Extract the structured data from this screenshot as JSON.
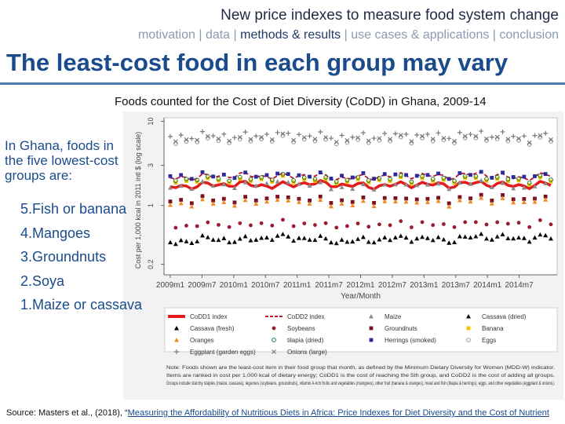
{
  "header": {
    "title": "New price indexes to measure food system change",
    "nav": [
      {
        "label": "motivation",
        "current": false
      },
      {
        "label": "data",
        "current": false
      },
      {
        "label": "methods & results",
        "current": true
      },
      {
        "label": "use cases & applications",
        "current": false
      },
      {
        "label": "conclusion",
        "current": false
      }
    ]
  },
  "slide_title": "The least-cost food in each group may vary",
  "figure_caption": "Foods counted for the Cost of Diet Diversity (CoDD) in Ghana, 2009-14",
  "intro_text": "In Ghana, foods in the five lowest-cost groups are:",
  "ranked_foods": [
    "5.Fish or banana",
    "4.Mangoes",
    "3.Groundnuts",
    "2.Soya",
    "1.Maize or cassava"
  ],
  "source": {
    "prefix": "Source: Masters et al., (2018), “",
    "link_text": "Measuring the Affordability of Nutritious Diets in Africa: Price Indexes for Diet Diversity and the Cost of Nutrient"
  },
  "chart_data": {
    "type": "scatter",
    "ylabel": "Cost per 1,000 kcal in 2011 intl $ (log scale)",
    "xlabel": "Year/Month",
    "log_scale_y": true,
    "ylim": [
      0.15,
      11
    ],
    "y_ticks": [
      0.2,
      1,
      3,
      10
    ],
    "x_ticks": [
      "2009m1",
      "2009m7",
      "2010m1",
      "2010m7",
      "2011m1",
      "2011m7",
      "2012m1",
      "2012m7",
      "2013m1",
      "2013m7",
      "2014m1",
      "2014m7"
    ],
    "x_range": [
      "2009m1",
      "2014m12"
    ],
    "series": [
      {
        "name": "CoDD1 index",
        "style": "thick-line",
        "color": "#e41a1c",
        "values": [
          1.65,
          1.75,
          1.8,
          1.7,
          1.85,
          1.75,
          1.7,
          1.8,
          1.75,
          1.85,
          1.7,
          1.8
        ]
      },
      {
        "name": "CoDD2 index",
        "style": "dashed-line",
        "color": "#c0142a",
        "values": [
          2.1,
          2.2,
          2.3,
          2.2,
          2.3,
          2.1,
          2.2,
          2.3,
          2.2,
          2.4,
          2.1,
          2.3
        ]
      },
      {
        "name": "Maize",
        "marker": "triangle",
        "color": "#8c8c8c",
        "values": [
          1.6,
          1.8,
          1.7,
          1.9,
          1.8,
          1.6,
          1.7,
          1.8,
          1.7,
          1.9,
          1.6,
          1.8
        ]
      },
      {
        "name": "Cassava (dried)",
        "marker": "triangle",
        "color": "#111111",
        "values": [
          0.35,
          0.4,
          0.38,
          0.42,
          0.4,
          0.37,
          0.39,
          0.41,
          0.38,
          0.43,
          0.4,
          0.42
        ]
      },
      {
        "name": "Cassava (fresh)",
        "marker": "triangle",
        "color": "#000000",
        "values": [
          0.36,
          0.41,
          0.39,
          0.43,
          0.41,
          0.38,
          0.4,
          0.42,
          0.39,
          0.44,
          0.41,
          0.43
        ]
      },
      {
        "name": "Soybeans",
        "marker": "circle",
        "color": "#9b1b30",
        "values": [
          0.55,
          0.6,
          0.58,
          0.62,
          0.6,
          0.57,
          0.59,
          0.61,
          0.58,
          0.63,
          0.6,
          0.62
        ]
      },
      {
        "name": "Groundnuts",
        "marker": "square",
        "color": "#7a1020",
        "values": [
          1.1,
          1.2,
          1.15,
          1.25,
          1.2,
          1.12,
          1.18,
          1.22,
          1.15,
          1.28,
          1.2,
          1.24
        ]
      },
      {
        "name": "Banana",
        "marker": "square",
        "color": "#f5c400",
        "values": [
          1.9,
          2.0,
          1.95,
          2.05,
          2.0,
          1.9,
          1.98,
          2.02,
          1.95,
          2.1,
          1.9,
          2.0
        ]
      },
      {
        "name": "Oranges",
        "marker": "triangle",
        "color": "#f08a24",
        "values": [
          1.0,
          1.1,
          1.05,
          1.15,
          1.1,
          1.02,
          1.08,
          1.12,
          1.05,
          1.18,
          1.1,
          1.14
        ]
      },
      {
        "name": "tilapia (dried)",
        "marker": "circle-open",
        "color": "#1e7a3a",
        "values": [
          2.0,
          2.1,
          2.05,
          2.15,
          2.1,
          2.0,
          2.08,
          2.12,
          2.05,
          2.2,
          2.0,
          2.1
        ]
      },
      {
        "name": "Herrings (smoked)",
        "marker": "square",
        "color": "#2b2b9e",
        "values": [
          2.2,
          2.3,
          2.25,
          2.35,
          2.3,
          2.2,
          2.28,
          2.32,
          2.25,
          2.4,
          2.2,
          2.3
        ]
      },
      {
        "name": "Eggs",
        "marker": "circle-open",
        "color": "#999999",
        "values": [
          5.5,
          6.0,
          5.8,
          6.2,
          6.0,
          5.6,
          5.9,
          6.1,
          5.8,
          6.3,
          5.7,
          6.0
        ]
      },
      {
        "name": "Eggplant (garden eggs)",
        "marker": "plus",
        "color": "#777777",
        "values": [
          6.5,
          7.0,
          6.8,
          7.2,
          7.0,
          6.6,
          6.9,
          7.1,
          6.8,
          7.3,
          6.7,
          7.0
        ]
      },
      {
        "name": "Onions (large)",
        "marker": "cross",
        "color": "#777777",
        "values": [
          5.8,
          6.3,
          6.1,
          6.5,
          6.3,
          5.9,
          6.2,
          6.4,
          6.1,
          6.6,
          6.0,
          6.3
        ]
      }
    ],
    "note_lines": [
      "Note: Foods shown are the least-cost item in their food group that month, as defined by the Minimum Dietary Diversity for Women (MDD-W) indicator.",
      "Items are ranked in cost per 1,000 kcal of dietary energy; CoDD1 is the cost of reaching the 5th group, and CoDD2 is the cost of adding all groups.",
      "Groups include starchy staples (maize, cassava), legumes (soybeans, groundnuts), vitamin A-rich fruits and vegetables (mangoes), other fruit (banana & oranges), meat and fish (tilapia & herrings), eggs, and other vegetables (eggplant & onions)."
    ]
  }
}
